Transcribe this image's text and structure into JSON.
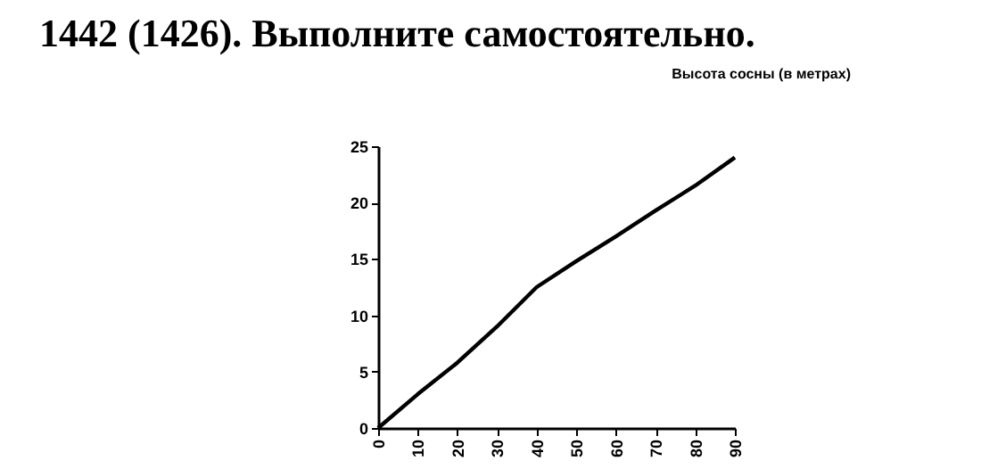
{
  "chart_data": {
    "type": "line",
    "title": "1442 (1426). Выполните самостоятельно.",
    "subtitle": "Высота сосны (в метрах)",
    "x": [
      0,
      10,
      20,
      30,
      40,
      50,
      60,
      70,
      80,
      90
    ],
    "values": [
      0,
      3,
      5.8,
      9,
      12.5,
      14.8,
      17,
      19.3,
      21.5,
      24
    ],
    "color": "#000000",
    "xlim": [
      0,
      90
    ],
    "xticks": [
      0,
      10,
      20,
      30,
      40,
      50,
      60,
      70,
      80,
      90
    ],
    "ylim": [
      0,
      25
    ],
    "yticks": [
      0,
      5,
      10,
      15,
      20,
      25
    ],
    "grid": false,
    "marker": "none",
    "line_style": "solid"
  }
}
